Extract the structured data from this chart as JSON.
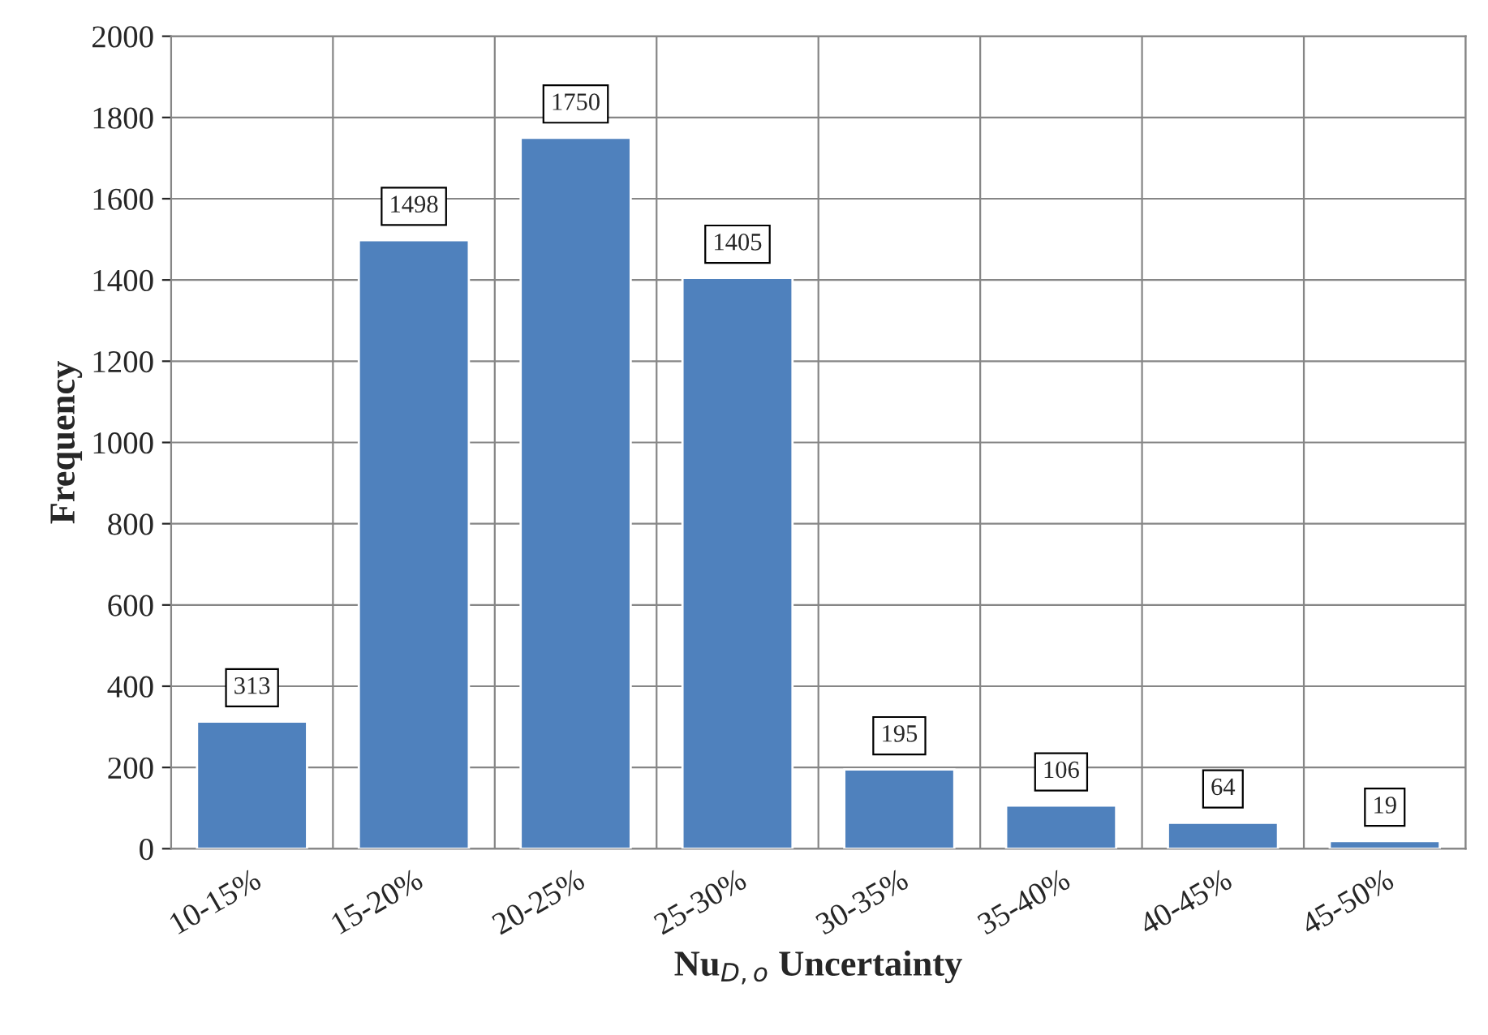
{
  "chart_data": {
    "type": "bar",
    "xlabel": "Nu$_{D,o}$ Uncertainty",
    "ylabel": "Frequency",
    "categories": [
      "10-15%",
      "15-20%",
      "20-25%",
      "25-30%",
      "30-35%",
      "35-40%",
      "40-45%",
      "45-50%"
    ],
    "values": [
      313,
      1498,
      1750,
      1405,
      195,
      106,
      64,
      19
    ],
    "color": "#4f81bd",
    "ylim": [
      0,
      2000
    ],
    "yticks": [
      0,
      200,
      400,
      600,
      800,
      1000,
      1200,
      1400,
      1600,
      1800,
      2000
    ],
    "grid": true,
    "data_labels": true
  }
}
